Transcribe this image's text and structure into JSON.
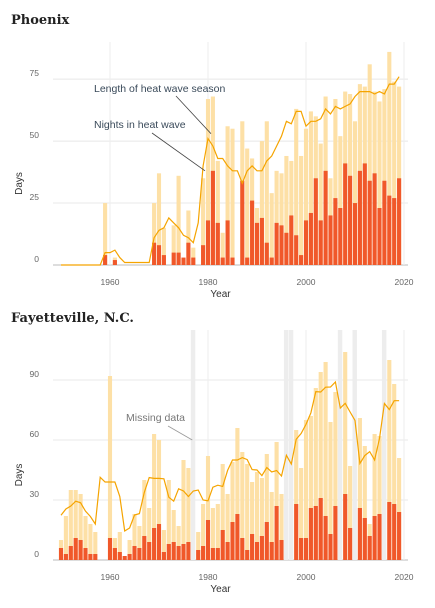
{
  "chart_data": [
    {
      "type": "bar",
      "title": "Phoenix",
      "xlabel": "Year",
      "ylabel": "Days",
      "xlim": [
        1950,
        2020
      ],
      "ylim": [
        0,
        90
      ],
      "xticks": [
        1960,
        1980,
        2000,
        2020
      ],
      "yticks": [
        0,
        25,
        50,
        75
      ],
      "series": [
        {
          "name": "Length of heat wave season",
          "type": "bar",
          "color": "#fde0a6"
        },
        {
          "name": "Nights in heat wave",
          "type": "bar",
          "color": "#f0582a"
        },
        {
          "name": "Length of heat wave season",
          "type": "line",
          "color": "#f5a400"
        }
      ],
      "annotations": [
        "Length of heat wave season",
        "Nights in heat wave"
      ],
      "years": [
        1950,
        1951,
        1952,
        1953,
        1954,
        1955,
        1956,
        1957,
        1958,
        1959,
        1960,
        1961,
        1962,
        1963,
        1964,
        1965,
        1966,
        1967,
        1968,
        1969,
        1970,
        1971,
        1972,
        1973,
        1974,
        1975,
        1976,
        1977,
        1978,
        1979,
        1980,
        1981,
        1982,
        1983,
        1984,
        1985,
        1986,
        1987,
        1988,
        1989,
        1990,
        1991,
        1992,
        1993,
        1994,
        1995,
        1996,
        1997,
        1998,
        1999,
        2000,
        2001,
        2002,
        2003,
        2004,
        2005,
        2006,
        2007,
        2008,
        2009,
        2010,
        2011,
        2012,
        2013,
        2014,
        2015,
        2016,
        2017,
        2018,
        2019
      ],
      "season": [
        0,
        0,
        0,
        0,
        0,
        0,
        0,
        0,
        0,
        25,
        0,
        3,
        0,
        0,
        0,
        0,
        0,
        0,
        0,
        25,
        37,
        15,
        0,
        16,
        36,
        0,
        22,
        7,
        0,
        35,
        67,
        68,
        42,
        13,
        56,
        55,
        0,
        58,
        47,
        43,
        23,
        50,
        58,
        29,
        38,
        37,
        44,
        42,
        63,
        44,
        55,
        62,
        60,
        49,
        68,
        35,
        67,
        52,
        70,
        69,
        58,
        73,
        72,
        81,
        70,
        66,
        71,
        86,
        74,
        72
      ],
      "nights": [
        0,
        0,
        0,
        0,
        0,
        0,
        0,
        0,
        0,
        4,
        0,
        2,
        0,
        0,
        0,
        0,
        0,
        0,
        0,
        9,
        8,
        4,
        0,
        5,
        5,
        3,
        9,
        3,
        0,
        8,
        18,
        38,
        17,
        3,
        18,
        3,
        0,
        34,
        3,
        26,
        17,
        19,
        9,
        3,
        17,
        16,
        13,
        20,
        12,
        4,
        18,
        21,
        35,
        18,
        38,
        20,
        27,
        23,
        41,
        36,
        25,
        38,
        41,
        34,
        37,
        23,
        34,
        28,
        27,
        35
      ],
      "line": [
        0,
        0,
        0,
        0,
        0,
        0,
        0,
        0,
        0,
        5,
        5,
        6,
        3,
        1,
        1,
        1,
        1,
        1,
        1,
        11,
        14,
        15,
        19,
        17,
        15,
        12,
        11,
        9,
        17,
        40,
        51,
        48,
        43,
        43,
        40,
        38,
        38,
        33,
        38,
        40,
        38,
        38,
        42,
        44,
        48,
        52,
        58,
        57,
        62,
        62,
        56,
        58,
        58,
        59,
        63,
        61,
        64,
        63,
        64,
        65,
        68,
        70,
        70,
        70,
        69,
        70,
        69,
        73,
        73,
        76
      ]
    },
    {
      "type": "bar",
      "title": "Fayetteville, N.C.",
      "xlabel": "Year",
      "ylabel": "Days",
      "xlim": [
        1950,
        2020
      ],
      "ylim": [
        0,
        115
      ],
      "xticks": [
        1960,
        1980,
        2000,
        2020
      ],
      "yticks": [
        0,
        30,
        60,
        90
      ],
      "missing_years": [
        1977,
        1996,
        1997,
        2007,
        2010,
        2016
      ],
      "annotations": [
        "Missing data"
      ],
      "years": [
        1950,
        1951,
        1952,
        1953,
        1954,
        1955,
        1956,
        1957,
        1958,
        1959,
        1960,
        1961,
        1962,
        1963,
        1964,
        1965,
        1966,
        1967,
        1968,
        1969,
        1970,
        1971,
        1972,
        1973,
        1974,
        1975,
        1976,
        1977,
        1978,
        1979,
        1980,
        1981,
        1982,
        1983,
        1984,
        1985,
        1986,
        1987,
        1988,
        1989,
        1990,
        1991,
        1992,
        1993,
        1994,
        1995,
        1996,
        1997,
        1998,
        1999,
        2000,
        2001,
        2002,
        2003,
        2004,
        2005,
        2006,
        2007,
        2008,
        2009,
        2010,
        2011,
        2012,
        2013,
        2014,
        2015,
        2016,
        2017,
        2018,
        2019
      ],
      "season": [
        10,
        22,
        35,
        35,
        33,
        22,
        18,
        14,
        0,
        0,
        92,
        11,
        14,
        0,
        10,
        23,
        17,
        40,
        26,
        63,
        60,
        15,
        40,
        25,
        17,
        50,
        46,
        0,
        14,
        28,
        52,
        26,
        28,
        48,
        33,
        49,
        66,
        54,
        48,
        39,
        44,
        41,
        53,
        34,
        59,
        33,
        0,
        0,
        65,
        46,
        70,
        72,
        86,
        94,
        99,
        69,
        84,
        0,
        104,
        47,
        0,
        71,
        57,
        18,
        63,
        62,
        0,
        100,
        88,
        51
      ],
      "nights": [
        6,
        3,
        7,
        11,
        10,
        6,
        3,
        3,
        0,
        0,
        11,
        6,
        4,
        2,
        3,
        7,
        6,
        12,
        9,
        16,
        18,
        4,
        8,
        9,
        7,
        8,
        9,
        0,
        5,
        7,
        20,
        6,
        6,
        15,
        9,
        19,
        23,
        11,
        5,
        13,
        9,
        12,
        19,
        9,
        27,
        10,
        0,
        0,
        28,
        11,
        11,
        26,
        27,
        31,
        22,
        13,
        27,
        0,
        33,
        16,
        0,
        26,
        21,
        12,
        22,
        23,
        0,
        29,
        28,
        24
      ]
    }
  ]
}
